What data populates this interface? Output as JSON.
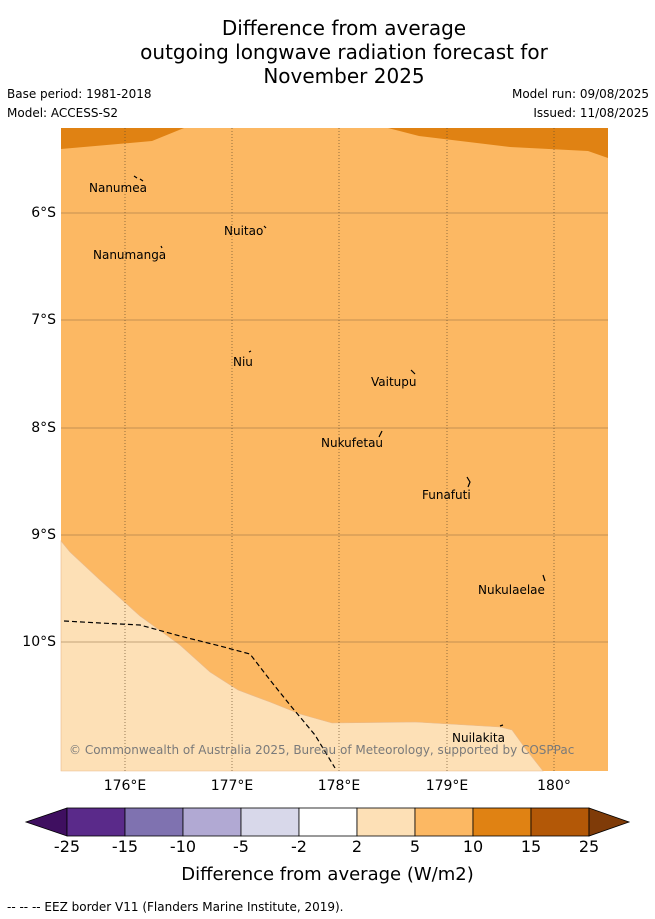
{
  "title_lines": [
    "Difference from average",
    "outgoing longwave radiation forecast for",
    "November 2025"
  ],
  "base_period": "Base period: 1981-2018",
  "model": "Model: ACCESS-S2",
  "model_run": "Model run: 09/08/2025",
  "issued": "Issued: 11/08/2025",
  "lat_ticks": [
    "6°S",
    "7°S",
    "8°S",
    "9°S",
    "10°S"
  ],
  "lon_ticks": [
    "176°E",
    "177°E",
    "178°E",
    "179°E",
    "180°"
  ],
  "places": [
    "Nanumea",
    "Nuitao",
    "Nanumanga",
    "Niu",
    "Vaitupu",
    "Nukufetau",
    "Funafuti",
    "Nukulaelae",
    "Nuilakita"
  ],
  "copyright": "© Commonwealth of Australia 2025, Bureau of Meteorology, supported by COSPPac",
  "colorbar": {
    "labels": [
      "-25",
      "-15",
      "-10",
      "-5",
      "-2",
      "2",
      "5",
      "10",
      "15",
      "25"
    ],
    "colors": [
      "#3f0f60",
      "#5a2a8a",
      "#7f72b0",
      "#b1a9d3",
      "#d8d8ea",
      "#ffffff",
      "#fde0b6",
      "#fcb863",
      "#e08213",
      "#b35807",
      "#7f3b08"
    ],
    "title": "Difference from average (W/m2)"
  },
  "map_colors": {
    "band_2_5": "#fde0b6",
    "band_5_10": "#fcb863",
    "band_10_15": "#e08213"
  },
  "footnote": "--  --  -- EEZ border V11 (Flanders Marine Institute, 2019)."
}
